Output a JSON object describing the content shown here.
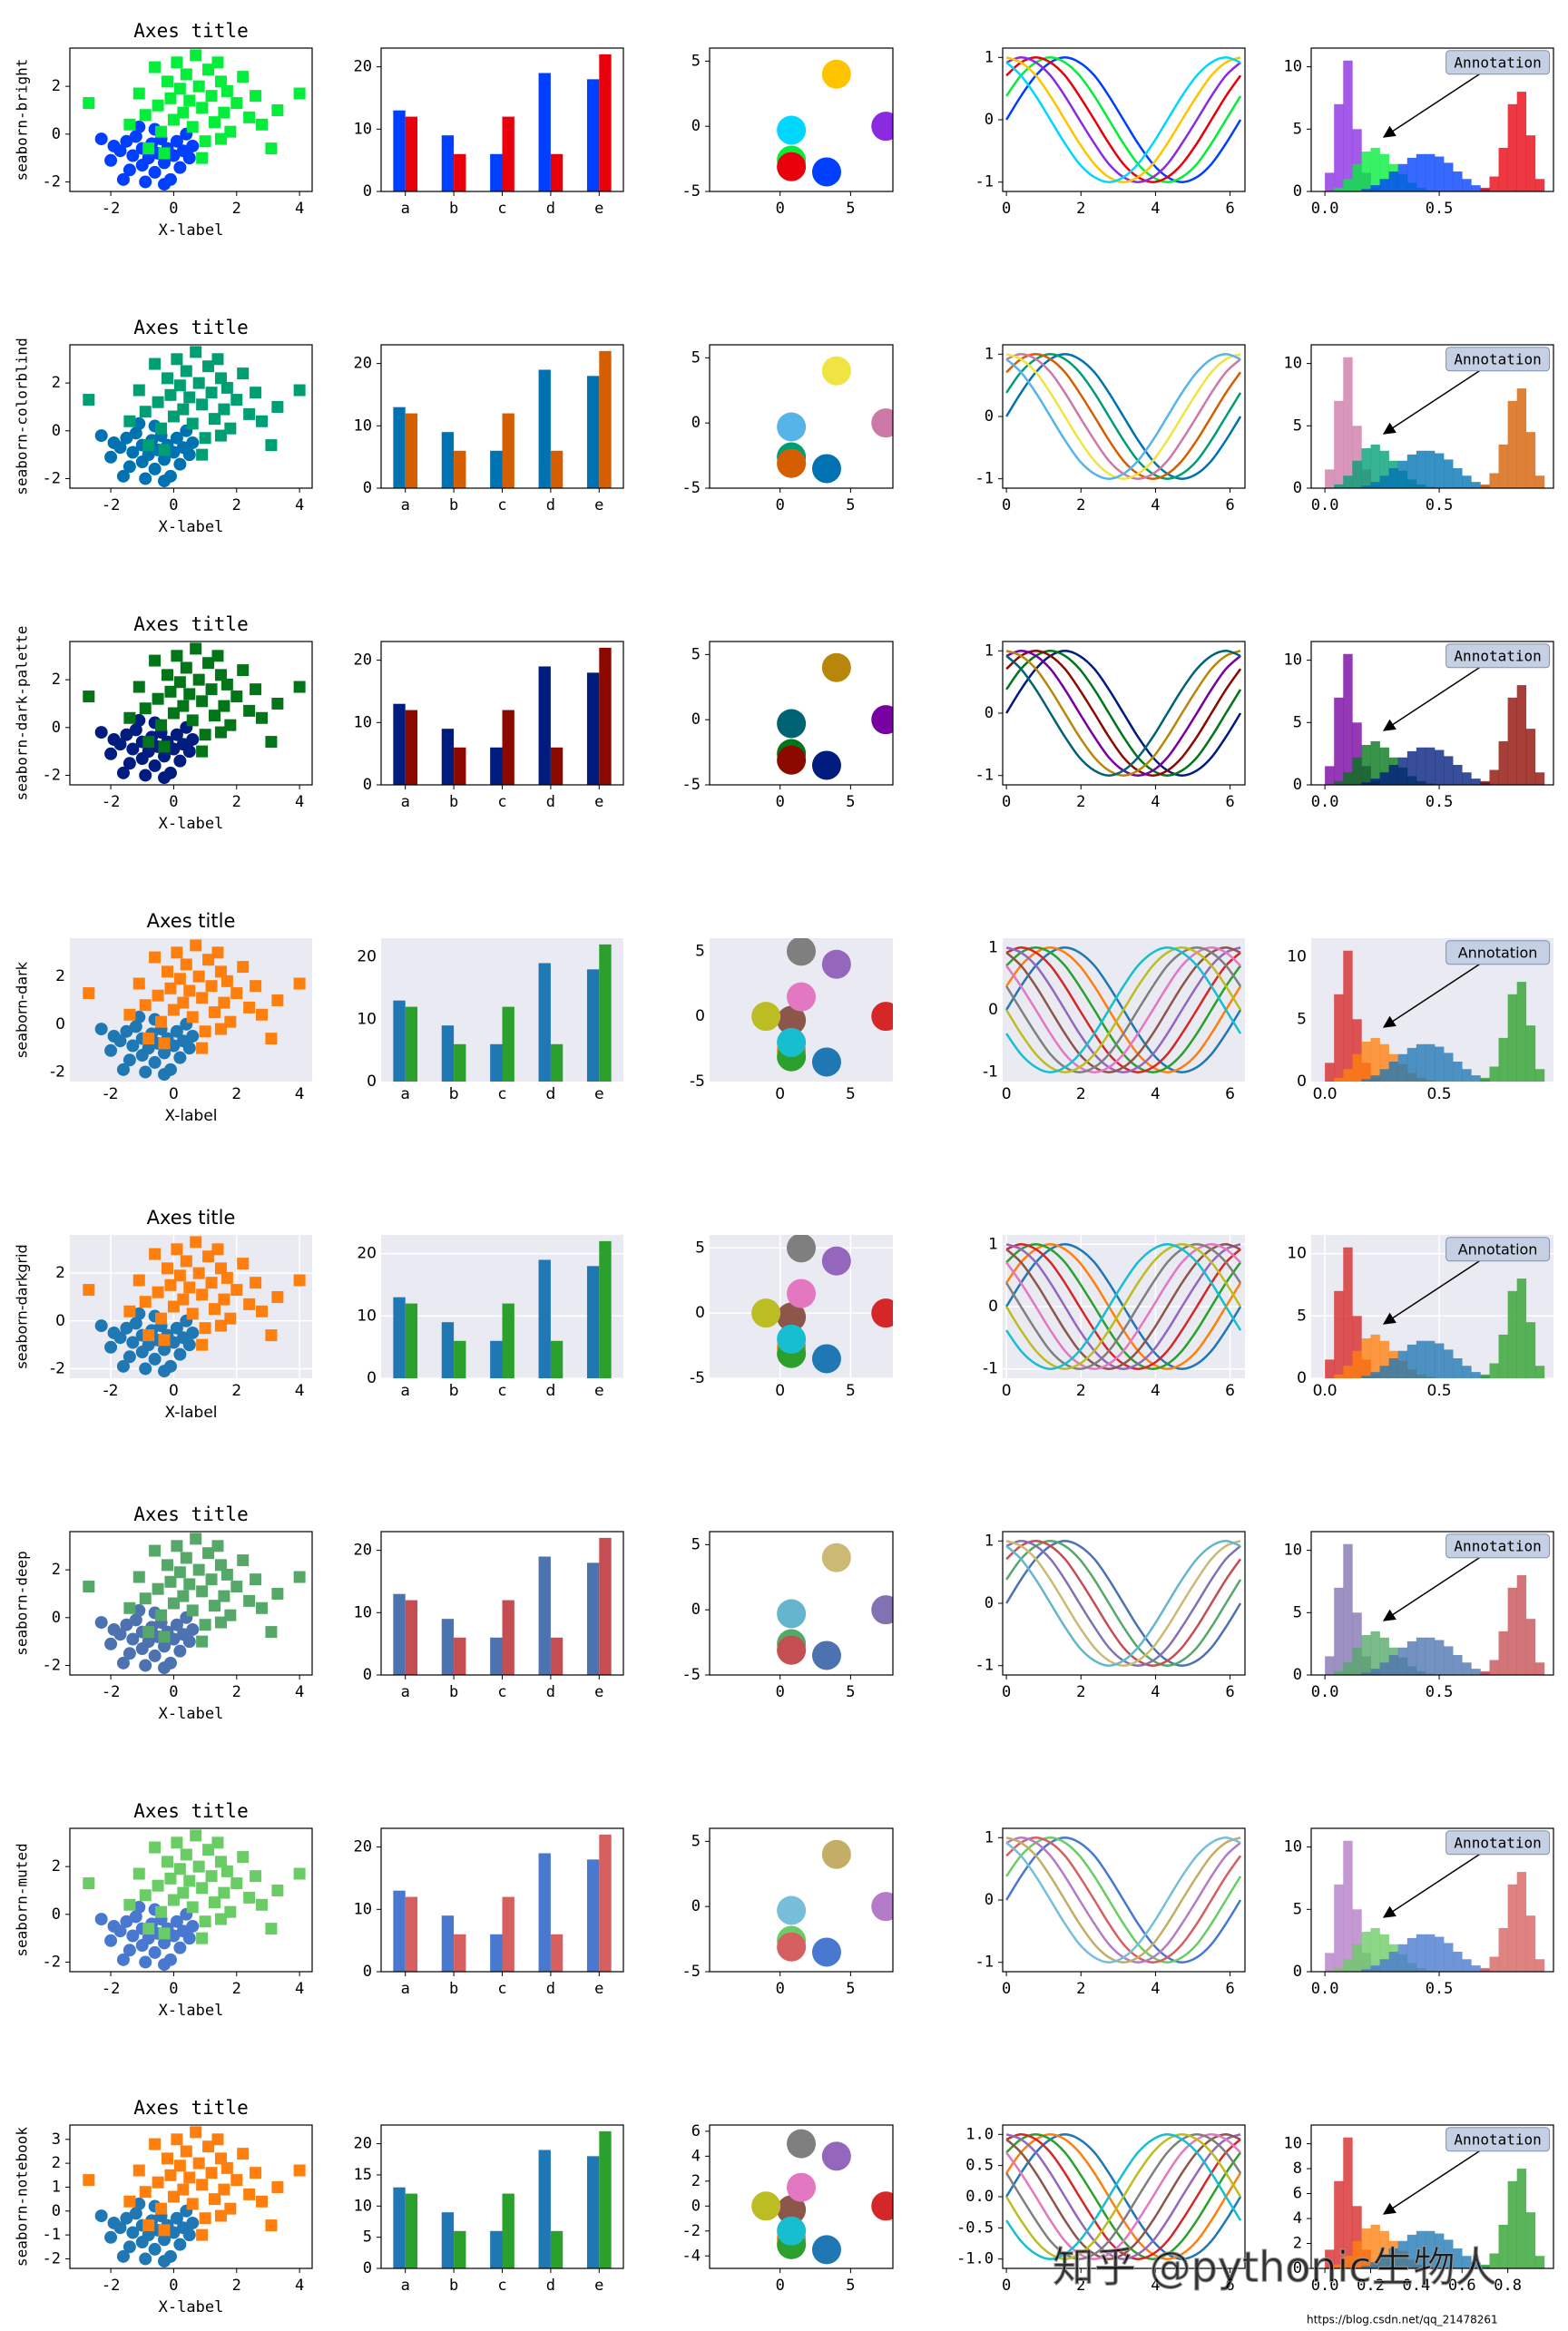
{
  "chart_data": [
    {
      "type": "scatter",
      "title": "Axes title",
      "x_label": "X-label",
      "xlim": [
        -3.3,
        4.4
      ],
      "ylim": [
        -2.4,
        3.6
      ],
      "xticks": [
        -2,
        0,
        2,
        4
      ],
      "yticks": [
        -2,
        0,
        2
      ],
      "series": [
        {
          "marker": "circle",
          "palette_index": 0,
          "x": [
            -2.3,
            -1.9,
            -1.7,
            -1.5,
            -1.3,
            -1.2,
            -1.0,
            -1.0,
            -0.8,
            -0.7,
            -0.6,
            -0.5,
            -0.4,
            -0.3,
            -0.2,
            -0.1,
            0.0,
            0.1,
            0.2,
            0.3,
            -1.4,
            -0.9,
            -2.0,
            0.5,
            -0.6,
            -1.6,
            0.4,
            -0.3,
            -1.1,
            0.6
          ],
          "values": [
            -0.2,
            -0.5,
            -0.7,
            -0.3,
            -0.9,
            -0.1,
            -0.6,
            -1.3,
            -1.0,
            -0.4,
            -1.6,
            -0.8,
            -0.2,
            -1.2,
            -0.6,
            -1.9,
            -0.9,
            -0.3,
            -1.4,
            -0.7,
            -1.5,
            -2.0,
            -1.1,
            -1.0,
            0.2,
            -1.9,
            0.0,
            -2.1,
            0.3,
            -0.5
          ]
        },
        {
          "marker": "square",
          "palette_index": 1,
          "x": [
            -2.7,
            -1.4,
            -1.1,
            -0.9,
            -0.6,
            -0.5,
            -0.4,
            -0.2,
            -0.1,
            0.0,
            0.1,
            0.2,
            0.3,
            0.4,
            0.5,
            0.6,
            0.7,
            0.8,
            0.9,
            1.0,
            1.1,
            1.2,
            1.3,
            1.4,
            1.5,
            1.6,
            1.7,
            1.8,
            2.0,
            2.2,
            2.4,
            2.6,
            2.8,
            3.1,
            3.3,
            4.0,
            -0.3,
            0.9,
            -0.8,
            1.5
          ],
          "values": [
            1.3,
            0.4,
            1.7,
            0.8,
            2.8,
            1.2,
            0.1,
            2.2,
            1.5,
            0.6,
            3.0,
            1.9,
            0.9,
            2.5,
            1.4,
            0.3,
            3.3,
            2.0,
            1.1,
            -0.3,
            2.7,
            1.6,
            0.5,
            3.0,
            2.2,
            0.9,
            1.8,
            0.1,
            1.3,
            2.4,
            0.7,
            1.6,
            0.4,
            -0.6,
            1.0,
            1.7,
            -0.8,
            -1.0,
            -0.6,
            -0.2
          ]
        }
      ]
    },
    {
      "type": "bar",
      "categories": [
        "a",
        "b",
        "c",
        "d",
        "e"
      ],
      "ylim": [
        0,
        23
      ],
      "yticks": [
        0,
        10,
        20
      ],
      "series": [
        {
          "palette_index": 0,
          "values": [
            13,
            9,
            6,
            19,
            18
          ]
        },
        {
          "palette_index": 2,
          "values": [
            12,
            6,
            12,
            6,
            22
          ]
        }
      ]
    },
    {
      "type": "dots",
      "xlim": [
        -5,
        8
      ],
      "ylim": [
        -5,
        6
      ],
      "xticks": [
        0,
        5
      ],
      "yticks": [
        -5,
        0,
        5
      ],
      "x": [
        3.3,
        0.8,
        0.8,
        7.5,
        4,
        0.8,
        1.5,
        1.5,
        -1,
        0.8
      ],
      "values": [
        -3.5,
        -2.6,
        -3.1,
        0,
        4,
        -0.3,
        1.5,
        5,
        0,
        -2
      ]
    },
    {
      "type": "line",
      "xlim": [
        -0.1,
        6.4
      ],
      "ylim": [
        -1.15,
        1.15
      ],
      "xticks": [
        0,
        2,
        4,
        6
      ],
      "yticks": [
        -1,
        0,
        1
      ],
      "x": [
        0,
        0.39,
        0.79,
        1.18,
        1.57,
        1.96,
        2.36,
        2.75,
        3.14,
        3.53,
        3.93,
        4.32,
        4.71,
        5.11,
        5.5,
        5.89,
        6.28
      ],
      "series": [
        {
          "values": [
            0,
            0.38,
            0.71,
            0.92,
            1,
            0.92,
            0.71,
            0.38,
            0,
            -0.38,
            -0.71,
            -0.92,
            -1,
            -0.92,
            -0.71,
            -0.38,
            0
          ]
        },
        {
          "values": [
            0.38,
            0.71,
            0.92,
            1,
            0.92,
            0.71,
            0.38,
            0,
            -0.38,
            -0.71,
            -0.92,
            -1,
            -0.92,
            -0.71,
            -0.38,
            0,
            0.38
          ]
        },
        {
          "values": [
            0.71,
            0.92,
            1,
            0.92,
            0.71,
            0.38,
            0,
            -0.38,
            -0.71,
            -0.92,
            -1,
            -0.92,
            -0.71,
            -0.38,
            0,
            0.38,
            0.71
          ]
        },
        {
          "values": [
            0.92,
            1,
            0.92,
            0.71,
            0.38,
            0,
            -0.38,
            -0.71,
            -0.92,
            -1,
            -0.92,
            -0.71,
            -0.38,
            0,
            0.38,
            0.71,
            0.92
          ]
        },
        {
          "values": [
            1,
            0.92,
            0.71,
            0.38,
            0,
            -0.38,
            -0.71,
            -0.92,
            -1,
            -0.92,
            -0.71,
            -0.38,
            0,
            0.38,
            0.71,
            0.92,
            1
          ]
        },
        {
          "values": [
            0.92,
            0.71,
            0.38,
            0,
            -0.38,
            -0.71,
            -0.92,
            -1,
            -0.92,
            -0.71,
            -0.38,
            0,
            0.38,
            0.71,
            0.92,
            1,
            0.92
          ]
        },
        {
          "values": [
            0.71,
            0.38,
            0,
            -0.38,
            -0.71,
            -0.92,
            -1,
            -0.92,
            -0.71,
            -0.38,
            0,
            0.38,
            0.71,
            0.92,
            1,
            0.92,
            0.71
          ]
        },
        {
          "values": [
            0.38,
            0,
            -0.38,
            -0.71,
            -0.92,
            -1,
            -0.92,
            -0.71,
            -0.38,
            0,
            0.38,
            0.71,
            0.92,
            1,
            0.92,
            0.71,
            0.38
          ]
        },
        {
          "values": [
            0,
            -0.38,
            -0.71,
            -0.92,
            -1,
            -0.92,
            -0.71,
            -0.38,
            0,
            0.38,
            0.71,
            0.92,
            1,
            0.92,
            0.71,
            0.38,
            0
          ]
        },
        {
          "values": [
            -0.38,
            -0.71,
            -0.92,
            -1,
            -0.92,
            -0.71,
            -0.38,
            0,
            0.38,
            0.71,
            0.92,
            1,
            0.92,
            0.71,
            0.38,
            0,
            -0.38
          ]
        }
      ]
    },
    {
      "type": "histogram",
      "annotation": "Annotation",
      "xlim": [
        -0.06,
        1.0
      ],
      "ylim": [
        0,
        11.5
      ],
      "xticks": [
        {
          "value": 0,
          "label": "0.0"
        },
        {
          "value": 0.5,
          "label": "0.5"
        }
      ],
      "yticks": [
        0,
        5,
        10
      ],
      "bins": [
        0,
        0.04,
        0.08,
        0.12,
        0.16,
        0.2,
        0.24,
        0.28,
        0.32,
        0.36,
        0.4,
        0.44,
        0.48,
        0.52,
        0.56,
        0.6,
        0.64,
        0.68,
        0.72,
        0.76,
        0.8,
        0.84,
        0.88,
        0.92,
        0.96
      ],
      "series": [
        {
          "palette_index": 3,
          "values": [
            1.5,
            7,
            10.5,
            5,
            1.5,
            0.3,
            0,
            0,
            0,
            0,
            0,
            0,
            0,
            0,
            0,
            0,
            0,
            0,
            0,
            0,
            0,
            0,
            0,
            0
          ]
        },
        {
          "palette_index": 1,
          "values": [
            0,
            0.3,
            1,
            2.2,
            3.2,
            3.5,
            3,
            2.2,
            1.4,
            0.7,
            0.3,
            0.1,
            0,
            0,
            0,
            0,
            0,
            0,
            0,
            0,
            0,
            0,
            0,
            0
          ]
        },
        {
          "palette_index": 0,
          "values": [
            0,
            0,
            0,
            0,
            0.2,
            0.5,
            1,
            1.6,
            2.2,
            2.7,
            3,
            3,
            2.8,
            2.3,
            1.6,
            1,
            0.5,
            0.2,
            0,
            0,
            0,
            0,
            0,
            0
          ]
        },
        {
          "palette_index": 2,
          "values": [
            0,
            0,
            0,
            0,
            0,
            0,
            0,
            0,
            0,
            0,
            0,
            0,
            0,
            0,
            0,
            0,
            0,
            0.3,
            1.2,
            3.5,
            7,
            8,
            4.5,
            1
          ]
        }
      ]
    }
  ],
  "styles": [
    {
      "name": "seaborn-bright",
      "font_family": "mono",
      "colors": [
        "#003FFF",
        "#03ED3A",
        "#E8000B",
        "#8A2BE2",
        "#FFC400",
        "#00D7FF"
      ]
    },
    {
      "name": "seaborn-colorblind",
      "font_family": "mono",
      "colors": [
        "#0072B2",
        "#009E73",
        "#D55E00",
        "#CC79A7",
        "#F0E442",
        "#56B4E9"
      ]
    },
    {
      "name": "seaborn-dark-palette",
      "font_family": "mono",
      "colors": [
        "#001C7F",
        "#017517",
        "#8C0900",
        "#7600A1",
        "#B8860B",
        "#006374"
      ]
    },
    {
      "name": "seaborn-dark",
      "font_family": "sans",
      "facecolor": "#eaeaf2",
      "grid": false,
      "colors": [
        "#1f77b4",
        "#ff7f0e",
        "#2ca02c",
        "#d62728",
        "#9467bd",
        "#8c564b",
        "#e377c2",
        "#7f7f7f",
        "#bcbd22",
        "#17becf"
      ]
    },
    {
      "name": "seaborn-darkgrid",
      "font_family": "sans",
      "facecolor": "#eaeaf2",
      "grid": true,
      "colors": [
        "#1f77b4",
        "#ff7f0e",
        "#2ca02c",
        "#d62728",
        "#9467bd",
        "#8c564b",
        "#e377c2",
        "#7f7f7f",
        "#bcbd22",
        "#17becf"
      ]
    },
    {
      "name": "seaborn-deep",
      "font_family": "mono",
      "colors": [
        "#4C72B0",
        "#55A868",
        "#C44E52",
        "#8172B2",
        "#CCB974",
        "#64B5CD"
      ]
    },
    {
      "name": "seaborn-muted",
      "font_family": "mono",
      "colors": [
        "#4878CF",
        "#6ACC65",
        "#D65F5F",
        "#B47CC7",
        "#C4AD66",
        "#77BEDB"
      ]
    },
    {
      "name": "seaborn-notebook",
      "font_family": "mono",
      "colors": [
        "#1f77b4",
        "#ff7f0e",
        "#2ca02c",
        "#d62728",
        "#9467bd",
        "#8c564b",
        "#e377c2",
        "#7f7f7f",
        "#bcbd22",
        "#17becf"
      ],
      "overrides": {
        "0": {
          "yticks": [
            -2,
            -1,
            0,
            1,
            2,
            3
          ]
        },
        "1": {
          "yticks": [
            0,
            5,
            10,
            15,
            20
          ]
        },
        "2": {
          "ylim": [
            -5,
            6.5
          ],
          "yticks": [
            -4,
            -2,
            0,
            2,
            4,
            6
          ]
        },
        "3": {
          "yticks": [
            {
              "value": -1,
              "label": "-1.0"
            },
            {
              "value": -0.5,
              "label": "-0.5"
            },
            {
              "value": 0,
              "label": "0.0"
            },
            {
              "value": 0.5,
              "label": "0.5"
            },
            {
              "value": 1,
              "label": "1.0"
            }
          ]
        },
        "4": {
          "xticks": [
            {
              "value": 0,
              "label": "0.0"
            },
            {
              "value": 0.2,
              "label": "0.2"
            },
            {
              "value": 0.4,
              "label": "0.4"
            },
            {
              "value": 0.6,
              "label": "0.6"
            },
            {
              "value": 0.8,
              "label": "0.8"
            }
          ],
          "yticks": [
            0,
            2,
            4,
            6,
            8,
            10
          ]
        }
      }
    }
  ],
  "watermark": "知乎 @pythonic生物人",
  "source_url": "https://blog.csdn.net/qq_21478261"
}
